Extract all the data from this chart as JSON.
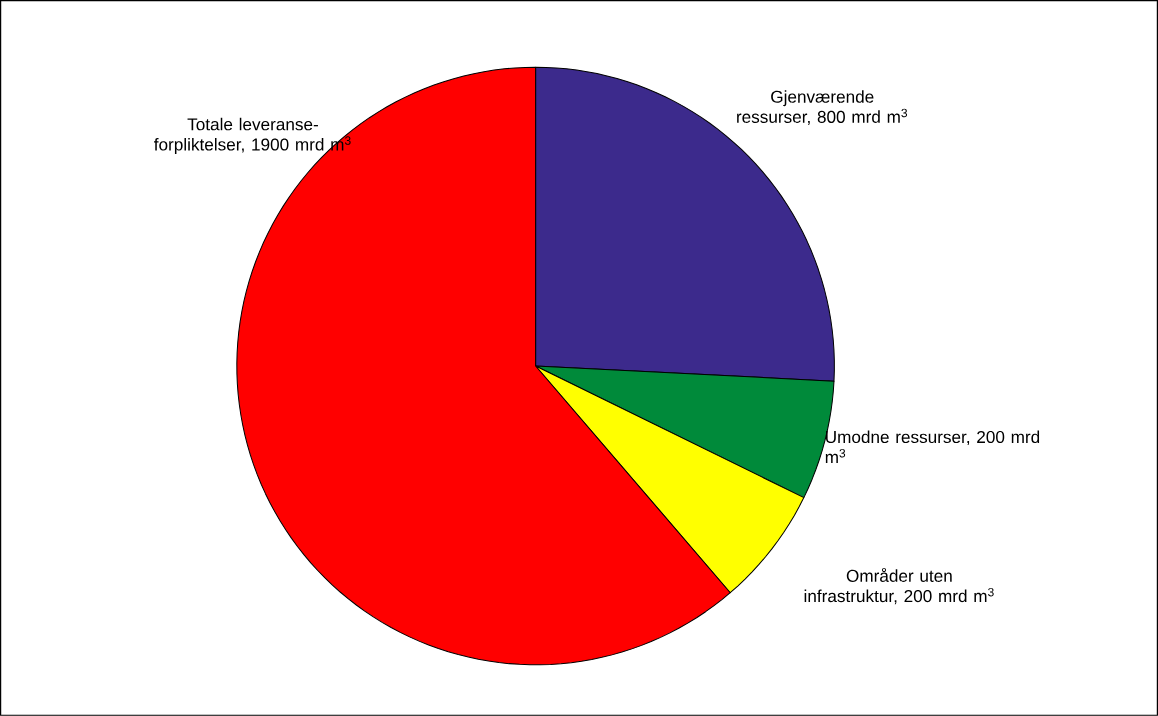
{
  "chart_data": {
    "type": "pie",
    "categories": [
      "Gjenværende ressurser, 800 mrd m$^{3}$",
      "Umodne ressurser, 200 mrd m$^{3}$",
      "Områder uten infrastruktur, 200 mrd m$^{3}$",
      "Totale leveranse-forpliktelser, 1900 mrd m$^{3}$"
    ],
    "values": [
      800,
      200,
      200,
      1900
    ],
    "colors": [
      "#3c2a8c",
      "#008a3a",
      "#ffff00",
      "#ff0000"
    ]
  }
}
